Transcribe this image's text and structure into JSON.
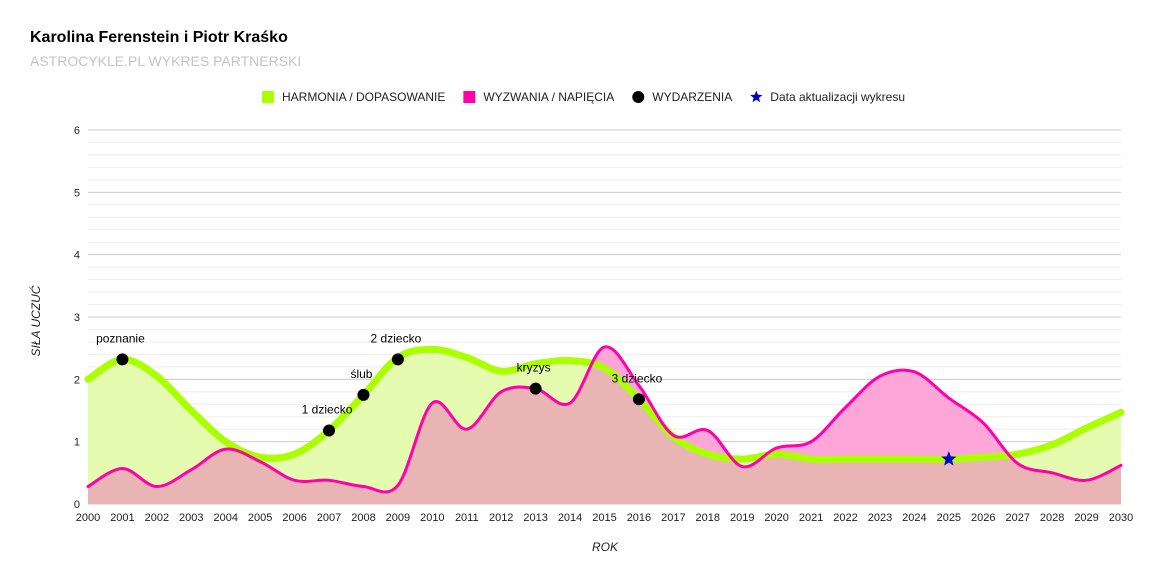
{
  "chart_data": {
    "type": "area",
    "title": "Karolina Ferenstein i Piotr Kraśko",
    "subtitle": "ASTROCYKLE.PL WYKRES PARTNERSKI",
    "xlabel": "ROK",
    "ylabel": "SIŁA UCZUĆ",
    "xlim": [
      2000,
      2030
    ],
    "ylim": [
      0,
      6
    ],
    "x_ticks": [
      "2000",
      "2001",
      "2002",
      "2003",
      "2004",
      "2005",
      "2006",
      "2007",
      "2008",
      "2009",
      "2010",
      "2011",
      "2012",
      "2013",
      "2014",
      "2015",
      "2016",
      "2017",
      "2018",
      "2019",
      "2020",
      "2021",
      "2022",
      "2023",
      "2024",
      "2025",
      "2026",
      "2027",
      "2028",
      "2029",
      "2030"
    ],
    "y_ticks": [
      "0",
      "1",
      "2",
      "3",
      "4",
      "5",
      "6"
    ],
    "legend": [
      {
        "name": "HARMONIA / DOPASOWANIE",
        "shape": "square",
        "color": "#aaff00"
      },
      {
        "name": "WYZWANIA / NAPIĘCIA",
        "shape": "square",
        "color": "#ff00aa"
      },
      {
        "name": "WYDARZENIA",
        "shape": "circle",
        "color": "#000000"
      },
      {
        "name": "Data aktualizacji wykresu",
        "shape": "star",
        "color": "#0000cc"
      }
    ],
    "series": [
      {
        "name": "HARMONIA / DOPASOWANIE",
        "color": "#aaff00",
        "fill": "#e4fbb0",
        "x": [
          2000,
          2001,
          2002,
          2003,
          2004,
          2005,
          2006,
          2007,
          2008,
          2009,
          2010,
          2011,
          2012,
          2013,
          2014,
          2015,
          2016,
          2017,
          2018,
          2019,
          2020,
          2021,
          2022,
          2023,
          2024,
          2025,
          2026,
          2027,
          2028,
          2029,
          2030
        ],
        "values": [
          2.0,
          2.32,
          2.05,
          1.5,
          1.0,
          0.75,
          0.8,
          1.18,
          1.75,
          2.35,
          2.48,
          2.35,
          2.13,
          2.25,
          2.3,
          2.18,
          1.68,
          1.08,
          0.8,
          0.72,
          0.8,
          0.72,
          0.72,
          0.72,
          0.72,
          0.72,
          0.75,
          0.8,
          0.95,
          1.22,
          1.47
        ]
      },
      {
        "name": "WYZWANIA / NAPIĘCIA",
        "color": "#ff00aa",
        "fill": "#ffa6d8",
        "x": [
          2000,
          2001,
          2002,
          2003,
          2004,
          2005,
          2006,
          2007,
          2008,
          2009,
          2010,
          2011,
          2012,
          2013,
          2014,
          2015,
          2016,
          2017,
          2018,
          2019,
          2020,
          2021,
          2022,
          2023,
          2024,
          2025,
          2026,
          2027,
          2028,
          2029,
          2030
        ],
        "values": [
          0.28,
          0.57,
          0.28,
          0.55,
          0.88,
          0.68,
          0.38,
          0.38,
          0.28,
          0.3,
          1.62,
          1.2,
          1.8,
          1.85,
          1.62,
          2.52,
          1.9,
          1.1,
          1.18,
          0.6,
          0.9,
          1.0,
          1.55,
          2.05,
          2.12,
          1.7,
          1.3,
          0.65,
          0.5,
          0.38,
          0.62
        ]
      }
    ],
    "events": [
      {
        "x": 2001,
        "y": 2.32,
        "label": "poznanie"
      },
      {
        "x": 2007,
        "y": 1.18,
        "label": "1 dziecko"
      },
      {
        "x": 2008,
        "y": 1.75,
        "label": "ślub"
      },
      {
        "x": 2009,
        "y": 2.32,
        "label": "2 dziecko"
      },
      {
        "x": 2013,
        "y": 1.85,
        "label": "kryzys"
      },
      {
        "x": 2016,
        "y": 1.68,
        "label": "3 dziecko"
      }
    ],
    "update_marker": {
      "x": 2025,
      "y": 0.72
    },
    "overlap_fill": "#e8b4b4",
    "gridline_color": "#cccccc"
  }
}
